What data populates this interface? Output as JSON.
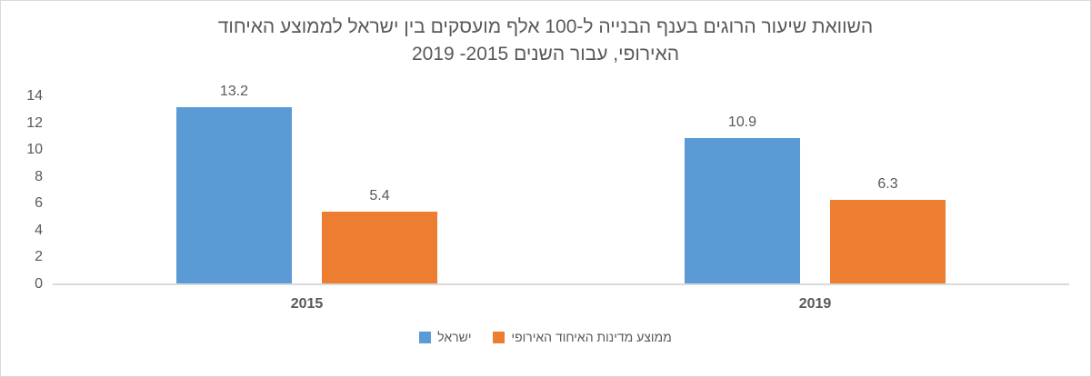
{
  "chart_data": {
    "type": "bar",
    "title_lines": [
      "השוואת שיעור הרוגים בענף הבנייה ל-100 אלף מועסקים בין ישראל לממוצע האיחוד",
      "האירופי, עבור השנים 2015- 2019"
    ],
    "categories": [
      "2015",
      "2019"
    ],
    "series": [
      {
        "name": "ישראל",
        "color": "#5B9BD5",
        "values": [
          13.2,
          10.9
        ]
      },
      {
        "name": "ממוצע מדינות האיחוד האירופי",
        "color": "#ED7D31",
        "values": [
          5.4,
          6.3
        ]
      }
    ],
    "value_labels": [
      [
        "13.2",
        "10.9"
      ],
      [
        "5.4",
        "6.3"
      ]
    ],
    "ylim": [
      0,
      14
    ],
    "yticks": [
      0,
      2,
      4,
      6,
      8,
      10,
      12,
      14
    ],
    "grid": false,
    "legend_position": "bottom",
    "text_direction": "rtl"
  },
  "colors": {
    "axis_line": "#d9d9d9",
    "border": "#d9d9d9",
    "text": "#595959"
  }
}
